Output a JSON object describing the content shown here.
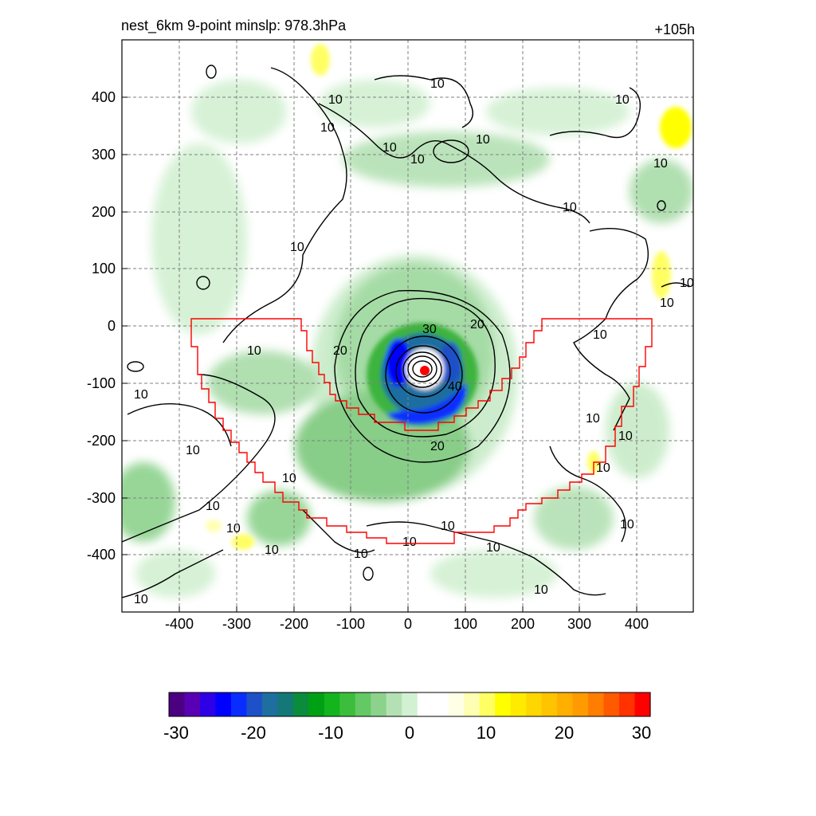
{
  "header": {
    "title": "nest_6km  9-point minslp: 978.3hPa",
    "forecast_hour": "+105h"
  },
  "chart_data": {
    "type": "heatmap",
    "x_ticks": [
      "-400",
      "-300",
      "-200",
      "-100",
      "0",
      "100",
      "200",
      "300",
      "400"
    ],
    "y_ticks": [
      "400",
      "300",
      "200",
      "100",
      "0",
      "-100",
      "-200",
      "-300",
      "-400"
    ],
    "xlim": [
      -500,
      500
    ],
    "ylim": [
      -500,
      500
    ],
    "grid": true,
    "storm_center": {
      "x": 30,
      "y": -78
    },
    "contour_levels_labeled": [
      "10",
      "20",
      "30",
      "40"
    ],
    "colorbar": {
      "min": -30,
      "max": 30,
      "tick_labels": [
        "-30",
        "-20",
        "-10",
        "0",
        "10",
        "20",
        "30"
      ],
      "colors": [
        "#4b0082",
        "#5a00b4",
        "#2d00e6",
        "#0000ff",
        "#0a2dff",
        "#1e50c8",
        "#1e6ea0",
        "#147878",
        "#0a8c3c",
        "#00a014",
        "#14b41e",
        "#3cbe3c",
        "#64c864",
        "#8cd28c",
        "#b4e1b4",
        "#d2f0d2",
        "#ffffff",
        "#ffffff",
        "#ffffe6",
        "#ffffb4",
        "#ffff64",
        "#ffff00",
        "#ffeb00",
        "#ffd700",
        "#ffc300",
        "#ffaf00",
        "#ff9b00",
        "#ff7d00",
        "#ff5a00",
        "#ff3200",
        "#ff0000"
      ]
    }
  },
  "colors": {
    "boundary": "#ff0000",
    "contour": "#000000",
    "grid": "#808080"
  }
}
